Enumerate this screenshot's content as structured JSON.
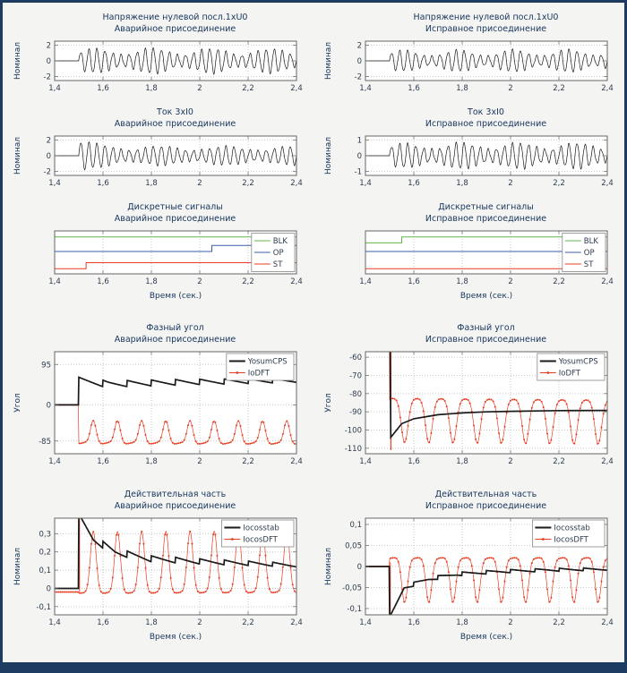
{
  "figure": {
    "background": "#f4f4f3",
    "frame_color": "#1e3c61"
  },
  "palette": {
    "black": "#1a1a1a",
    "red": "#e83d23",
    "green": "#63b44a",
    "blue": "#3a5fa8",
    "grid": "#c7c7c7",
    "axis": "#666666",
    "title_color": "#17365c",
    "tick_color": "#2e3b4e"
  },
  "x_axis": {
    "label": "Время (сек.)",
    "range": [
      1.4,
      2.4
    ],
    "ticks": [
      1.4,
      1.6,
      1.8,
      2,
      2.2,
      2.4
    ],
    "tick_labels": [
      "1,4",
      "1,6",
      "1,8",
      "2",
      "2,2",
      "2,4"
    ]
  },
  "chart_data": [
    {
      "id": "u0-fault",
      "type": "line",
      "row": 1,
      "title": "Напряжение нулевой посл.1xU0",
      "subtitle": "Аварийное присоединение",
      "ylabel": "Номинал",
      "ylim": [
        -2.5,
        2.5
      ],
      "yticks": [
        -2,
        0,
        2
      ],
      "ytick_labels": [
        "-2",
        "0",
        "2"
      ],
      "legend": null,
      "series": [
        {
          "name": "U0",
          "color": "black",
          "lw": 0.7,
          "gen": {
            "kind": "sine",
            "t0": 1.5,
            "f": 30,
            "amp": [
              [
                1.5,
                1.05
              ],
              [
                1.65,
                1.2
              ],
              [
                2.4,
                1.1
              ]
            ],
            "beatF": 4.1,
            "beatA": 0.38,
            "h2": 0.14
          }
        }
      ]
    },
    {
      "id": "u0-ok",
      "type": "line",
      "row": 1,
      "title": "Напряжение нулевой посл.1xU0",
      "subtitle": "Исправное присоединение",
      "ylabel": "Номинал",
      "ylim": [
        -2.5,
        2.5
      ],
      "yticks": [
        -2,
        0,
        2
      ],
      "ytick_labels": [
        "-2",
        "0",
        "2"
      ],
      "legend": null,
      "series": [
        {
          "name": "U0",
          "color": "black",
          "lw": 0.7,
          "gen": {
            "kind": "sine",
            "t0": 1.5,
            "f": 30,
            "amp": [
              [
                1.5,
                0.95
              ],
              [
                2.4,
                1.05
              ]
            ],
            "beatF": 4.4,
            "beatA": 0.4,
            "h2": 0.12
          }
        }
      ]
    },
    {
      "id": "i0-fault",
      "type": "line",
      "row": 2,
      "title": "Ток 3хI0",
      "subtitle": "Аварийное присоединение",
      "ylabel": "Номинал",
      "ylim": [
        -2.5,
        2.5
      ],
      "yticks": [
        -2,
        0,
        2
      ],
      "ytick_labels": [
        "-2",
        "0",
        "2"
      ],
      "legend": null,
      "series": [
        {
          "name": "3I0",
          "color": "black",
          "lw": 0.7,
          "gen": {
            "kind": "sine",
            "t0": 1.5,
            "f": 30,
            "amp": [
              [
                1.5,
                1.7
              ],
              [
                1.56,
                1.2
              ],
              [
                1.75,
                0.95
              ],
              [
                2.4,
                0.9
              ]
            ],
            "beatF": 3.7,
            "beatA": 0.3,
            "h2": 0.12
          }
        }
      ]
    },
    {
      "id": "i0-ok",
      "type": "line",
      "row": 2,
      "title": "Ток 3хI0",
      "subtitle": "Исправное присоединение",
      "ylabel": "Номинал",
      "ylim": [
        -1.25,
        1.25
      ],
      "yticks": [
        -1,
        0,
        1
      ],
      "ytick_labels": [
        "-1",
        "0",
        "1"
      ],
      "legend": null,
      "series": [
        {
          "name": "3I0",
          "color": "black",
          "lw": 0.7,
          "gen": {
            "kind": "sine",
            "t0": 1.5,
            "f": 30,
            "amp": [
              [
                1.5,
                0.55
              ],
              [
                1.7,
                0.62
              ],
              [
                2.4,
                0.6
              ]
            ],
            "beatF": 4.2,
            "beatA": 0.35,
            "h2": 0.08
          }
        }
      ]
    },
    {
      "id": "disc-fault",
      "type": "line",
      "row": 3,
      "title": "Дискретные сигналы",
      "subtitle": "Аварийное присоединение",
      "ylabel": "",
      "ylim": [
        0,
        1
      ],
      "yticks": [],
      "ytick_labels": [],
      "legend": {
        "pos": "right",
        "entries": [
          {
            "label": "BLK",
            "color": "green"
          },
          {
            "label": "OP",
            "color": "blue"
          },
          {
            "label": "ST",
            "color": "red"
          }
        ]
      },
      "series": [
        {
          "name": "BLK",
          "color": "green",
          "lw": 1,
          "gen": {
            "kind": "steps",
            "pts": [
              [
                1.4,
                0.86
              ],
              [
                2.4,
                0.86
              ]
            ]
          }
        },
        {
          "name": "OP",
          "color": "blue",
          "lw": 1,
          "gen": {
            "kind": "steps",
            "pts": [
              [
                1.4,
                0.52
              ],
              [
                2.05,
                0.52
              ],
              [
                2.05,
                0.66
              ],
              [
                2.4,
                0.66
              ]
            ]
          }
        },
        {
          "name": "ST",
          "color": "red",
          "lw": 1,
          "gen": {
            "kind": "steps",
            "pts": [
              [
                1.4,
                0.12
              ],
              [
                1.53,
                0.12
              ],
              [
                1.53,
                0.26
              ],
              [
                2.4,
                0.26
              ]
            ]
          }
        }
      ]
    },
    {
      "id": "disc-ok",
      "type": "line",
      "row": 3,
      "title": "Дискретные сигналы",
      "subtitle": "Исправное присоединение",
      "ylabel": "",
      "ylim": [
        0,
        1
      ],
      "yticks": [],
      "ytick_labels": [],
      "legend": {
        "pos": "right",
        "entries": [
          {
            "label": "BLK",
            "color": "green"
          },
          {
            "label": "OP",
            "color": "blue"
          },
          {
            "label": "ST",
            "color": "red"
          }
        ]
      },
      "series": [
        {
          "name": "BLK",
          "color": "green",
          "lw": 1,
          "gen": {
            "kind": "steps",
            "pts": [
              [
                1.4,
                0.72
              ],
              [
                1.55,
                0.72
              ],
              [
                1.55,
                0.86
              ],
              [
                2.4,
                0.86
              ]
            ]
          }
        },
        {
          "name": "OP",
          "color": "blue",
          "lw": 1,
          "gen": {
            "kind": "steps",
            "pts": [
              [
                1.4,
                0.52
              ],
              [
                2.4,
                0.52
              ]
            ]
          }
        },
        {
          "name": "ST",
          "color": "red",
          "lw": 1,
          "gen": {
            "kind": "steps",
            "pts": [
              [
                1.4,
                0.12
              ],
              [
                2.4,
                0.12
              ]
            ]
          }
        }
      ]
    },
    {
      "id": "phase-fault",
      "type": "line",
      "row": 4,
      "title": "Фазный угол",
      "subtitle": "Аварийное присоединение",
      "ylabel": "Угол",
      "ylim": [
        -115,
        125
      ],
      "yticks": [
        95,
        0,
        -85
      ],
      "ytick_labels": [
        "95",
        "0",
        "-85"
      ],
      "legend": {
        "pos": "top-right",
        "entries": [
          {
            "label": "YosumCPS",
            "color": "black",
            "thick": true
          },
          {
            "label": "IoDFT",
            "color": "red",
            "marker": true
          }
        ]
      },
      "series": [
        {
          "name": "IoDFT",
          "color": "red",
          "lw": 0.7,
          "markers": true,
          "gen": {
            "kind": "pulse",
            "t0": 1.5,
            "pre": 0,
            "period": 0.1,
            "base": [
              [
                1.5,
                -87
              ],
              [
                2.4,
                -88
              ]
            ],
            "pulses": [
              {
                "c": 0.6,
                "w": 0.012,
                "amp": 55
              },
              {
                "c": 0.76,
                "w": 0.03,
                "amp": -6
              }
            ]
          }
        },
        {
          "name": "YosumCPS",
          "color": "black",
          "lw": 1.7,
          "gen": {
            "kind": "saw",
            "t0": 1.5,
            "pre": 0,
            "f": 10,
            "base": [
              [
                1.5,
                57
              ],
              [
                1.62,
                49
              ],
              [
                1.9,
                53
              ],
              [
                2.4,
                58
              ]
            ],
            "ra": [
              [
                1.5,
                8
              ],
              [
                2.4,
                5
              ]
            ]
          }
        }
      ]
    },
    {
      "id": "phase-ok",
      "type": "line",
      "row": 4,
      "title": "Фазный угол",
      "subtitle": "Исправное присоединение",
      "ylabel": "Угол",
      "ylim": [
        -113,
        -57
      ],
      "yticks": [
        -60,
        -70,
        -80,
        -90,
        -100,
        -110
      ],
      "ytick_labels": [
        "-60",
        "-70",
        "-80",
        "-90",
        "-100",
        "-110"
      ],
      "legend": {
        "pos": "top-right",
        "entries": [
          {
            "label": "YosumCPS",
            "color": "black",
            "thick": true
          },
          {
            "label": "IoDFT",
            "color": "red",
            "marker": true
          }
        ]
      },
      "series": [
        {
          "name": "IoDFT-transient",
          "color": "red",
          "lw": 1.2,
          "gen": {
            "kind": "vline",
            "t": 1.505,
            "y1": -57,
            "y2": -111
          }
        },
        {
          "name": "IoDFT",
          "color": "red",
          "lw": 0.7,
          "markers": true,
          "gen": {
            "kind": "pulse",
            "t0": 1.5,
            "pre": 0,
            "period": 0.1,
            "base": [
              [
                1.5,
                -84.5
              ],
              [
                2.4,
                -85.5
              ]
            ],
            "pulses": [
              {
                "c": 0.3,
                "w": 0.06,
                "amp": 2
              },
              {
                "c": 0.62,
                "w": 0.014,
                "amp": -24
              }
            ]
          }
        },
        {
          "name": "YosumCPS",
          "color": "black",
          "lw": 1.7,
          "gen": {
            "kind": "points",
            "pts": [
              [
                1.4,
                0
              ],
              [
                1.499,
                0
              ],
              [
                1.505,
                -104
              ],
              [
                1.55,
                -96.5
              ],
              [
                1.6,
                -93.8
              ],
              [
                1.7,
                -91.6
              ],
              [
                1.8,
                -90.6
              ],
              [
                1.9,
                -90
              ],
              [
                2,
                -89.7
              ],
              [
                2.1,
                -89.5
              ],
              [
                2.2,
                -89.3
              ],
              [
                2.4,
                -89.2
              ]
            ]
          }
        }
      ]
    },
    {
      "id": "real-fault",
      "type": "line",
      "row": 5,
      "title": "Действительная часть",
      "subtitle": "Аварийное присоединение",
      "ylabel": "Номинал",
      "ylim": [
        -0.145,
        0.385
      ],
      "yticks": [
        -0.1,
        0,
        0.1,
        0.2,
        0.3
      ],
      "ytick_labels": [
        "-0,1",
        "0",
        "0,1",
        "0,2",
        "0,3"
      ],
      "legend": {
        "pos": "top-right",
        "entries": [
          {
            "label": "Iocosstab",
            "color": "black",
            "thick": true
          },
          {
            "label": "IocosDFT",
            "color": "red",
            "marker": true
          }
        ]
      },
      "series": [
        {
          "name": "IocosDFT-transient",
          "color": "red",
          "lw": 0.9,
          "gen": {
            "kind": "vline",
            "t": 1.503,
            "y1": -0.02,
            "y2": 0.385
          }
        },
        {
          "name": "IocosDFT",
          "color": "red",
          "lw": 0.7,
          "markers": true,
          "gen": {
            "kind": "pulse",
            "t0": 1.5,
            "pre": -0.02,
            "period": 0.1,
            "base": [
              [
                1.5,
                -0.022
              ],
              [
                2.4,
                -0.018
              ]
            ],
            "pulses": [
              {
                "c": 0.6,
                "w": 0.012,
                "amp": 0.34
              },
              {
                "c": 0.74,
                "w": 0.03,
                "amp": -0.008
              }
            ]
          }
        },
        {
          "name": "Iocosstab",
          "color": "black",
          "lw": 1.7,
          "gen": {
            "kind": "saw",
            "t0": 1.5,
            "pre": 0,
            "f": 10,
            "base": [
              [
                1.5,
                0.39
              ],
              [
                1.56,
                0.27
              ],
              [
                1.65,
                0.2
              ],
              [
                1.8,
                0.162
              ],
              [
                2,
                0.148
              ],
              [
                2.4,
                0.128
              ]
            ],
            "ra": [
              [
                1.5,
                0.02
              ],
              [
                2.4,
                0.01
              ]
            ]
          }
        }
      ]
    },
    {
      "id": "real-ok",
      "type": "line",
      "row": 5,
      "title": "Действительная часть",
      "subtitle": "Исправное присоединение",
      "ylabel": "Номинал",
      "ylim": [
        -0.115,
        0.115
      ],
      "yticks": [
        -0.1,
        -0.05,
        0,
        0.05,
        0.1
      ],
      "ytick_labels": [
        "-0,1",
        "-0,05",
        "0",
        "0,05",
        "0,1"
      ],
      "legend": {
        "pos": "top-right",
        "entries": [
          {
            "label": "Iocosstab",
            "color": "black",
            "thick": true
          },
          {
            "label": "IocosDFT",
            "color": "red",
            "marker": true
          }
        ]
      },
      "series": [
        {
          "name": "IocosDFT-transient",
          "color": "red",
          "lw": 0.9,
          "gen": {
            "kind": "vline",
            "t": 1.503,
            "y1": 0.01,
            "y2": -0.115
          }
        },
        {
          "name": "IocosDFT",
          "color": "red",
          "lw": 0.7,
          "markers": true,
          "gen": {
            "kind": "pulse",
            "t0": 1.5,
            "pre": 0,
            "period": 0.1,
            "base": [
              [
                1.5,
                0.012
              ],
              [
                2.4,
                0.012
              ]
            ],
            "pulses": [
              {
                "c": 0.3,
                "w": 0.05,
                "amp": 0.009
              },
              {
                "c": 0.62,
                "w": 0.012,
                "amp": -0.105
              }
            ]
          }
        },
        {
          "name": "Iocosstab",
          "color": "black",
          "lw": 1.7,
          "gen": {
            "kind": "saw",
            "t0": 1.5,
            "pre": 0,
            "f": 10,
            "base": [
              [
                1.5,
                -0.125
              ],
              [
                1.56,
                -0.05
              ],
              [
                1.66,
                -0.03
              ],
              [
                1.78,
                -0.018
              ],
              [
                1.95,
                -0.012
              ],
              [
                2.15,
                -0.008
              ],
              [
                2.4,
                -0.006
              ]
            ],
            "ra": [
              [
                1.5,
                0.005
              ],
              [
                2.4,
                0.003
              ]
            ]
          }
        }
      ]
    }
  ]
}
